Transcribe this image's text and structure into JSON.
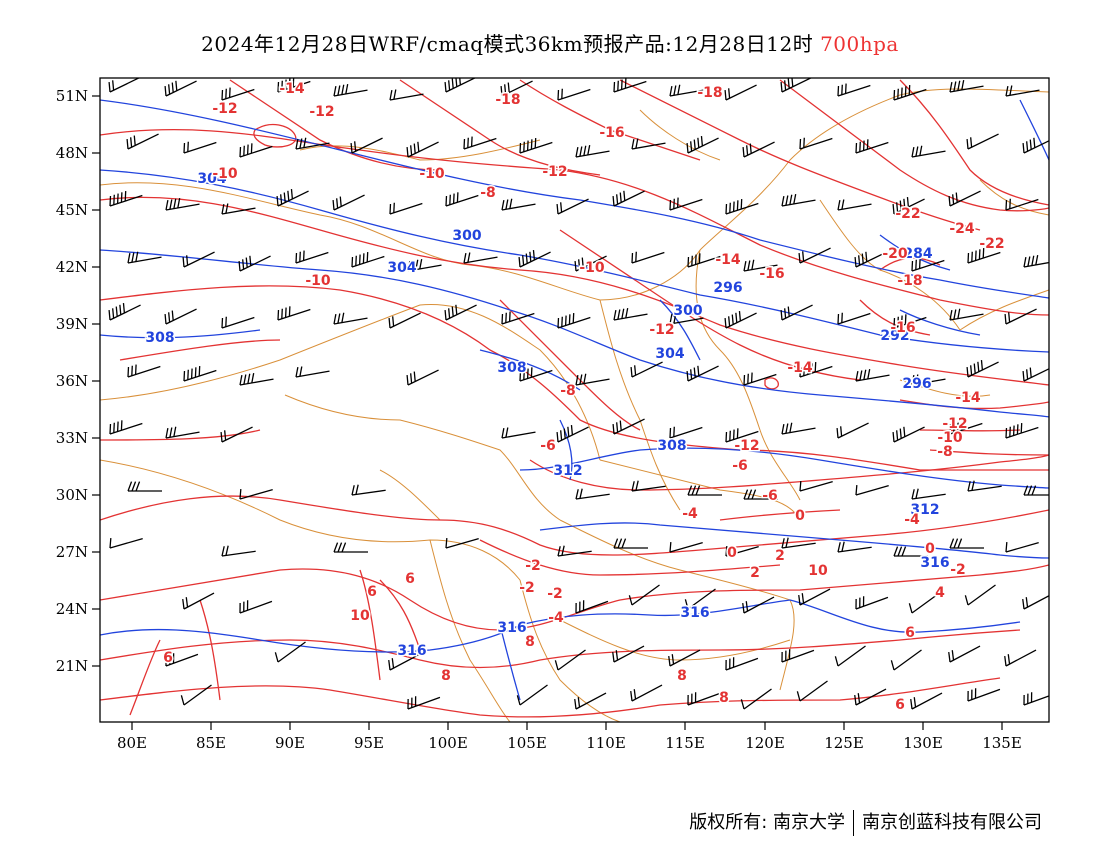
{
  "title": {
    "main": "2024年12月28日WRF/cmaq模式36km预报产品:12月28日12时",
    "level": "700hpa"
  },
  "colors": {
    "height": "#2244dd",
    "temperature": "#e33333",
    "border": "#d9903a",
    "wind": "#000000",
    "level": "#e33333"
  },
  "axes": {
    "lat_labels": [
      "51N",
      "48N",
      "45N",
      "42N",
      "39N",
      "36N",
      "33N",
      "30N",
      "27N",
      "24N",
      "21N"
    ],
    "lon_labels": [
      "80E",
      "85E",
      "90E",
      "95E",
      "100E",
      "105E",
      "110E",
      "115E",
      "120E",
      "125E",
      "130E",
      "135E"
    ]
  },
  "height_labels": [
    "304",
    "300",
    "304",
    "308",
    "296",
    "300",
    "304",
    "308",
    "312",
    "292",
    "296",
    "284",
    "308",
    "312",
    "316",
    "316",
    "316",
    "316"
  ],
  "temperature_labels": [
    "-14",
    "-12",
    "-12",
    "-16",
    "-18",
    "-18",
    "-10",
    "-10",
    "-12",
    "-8",
    "-10",
    "-14",
    "-16",
    "-12",
    "-20",
    "-18",
    "-22",
    "-24",
    "-22",
    "-10",
    "-8",
    "-16",
    "-14",
    "-14",
    "-12",
    "-10",
    "-8",
    "-6",
    "-6",
    "-4",
    "-4",
    "-2",
    "0",
    "-2",
    "-4",
    "-2",
    "2",
    "0",
    "4",
    "6",
    "6",
    "8",
    "6",
    "8",
    "10",
    "8",
    "6",
    "8",
    "6",
    "10",
    "-12",
    "-6",
    "-2",
    "0",
    "2"
  ],
  "footer": {
    "left": "版权所有: 南京大学",
    "right": "南京创蓝科技有限公司"
  }
}
